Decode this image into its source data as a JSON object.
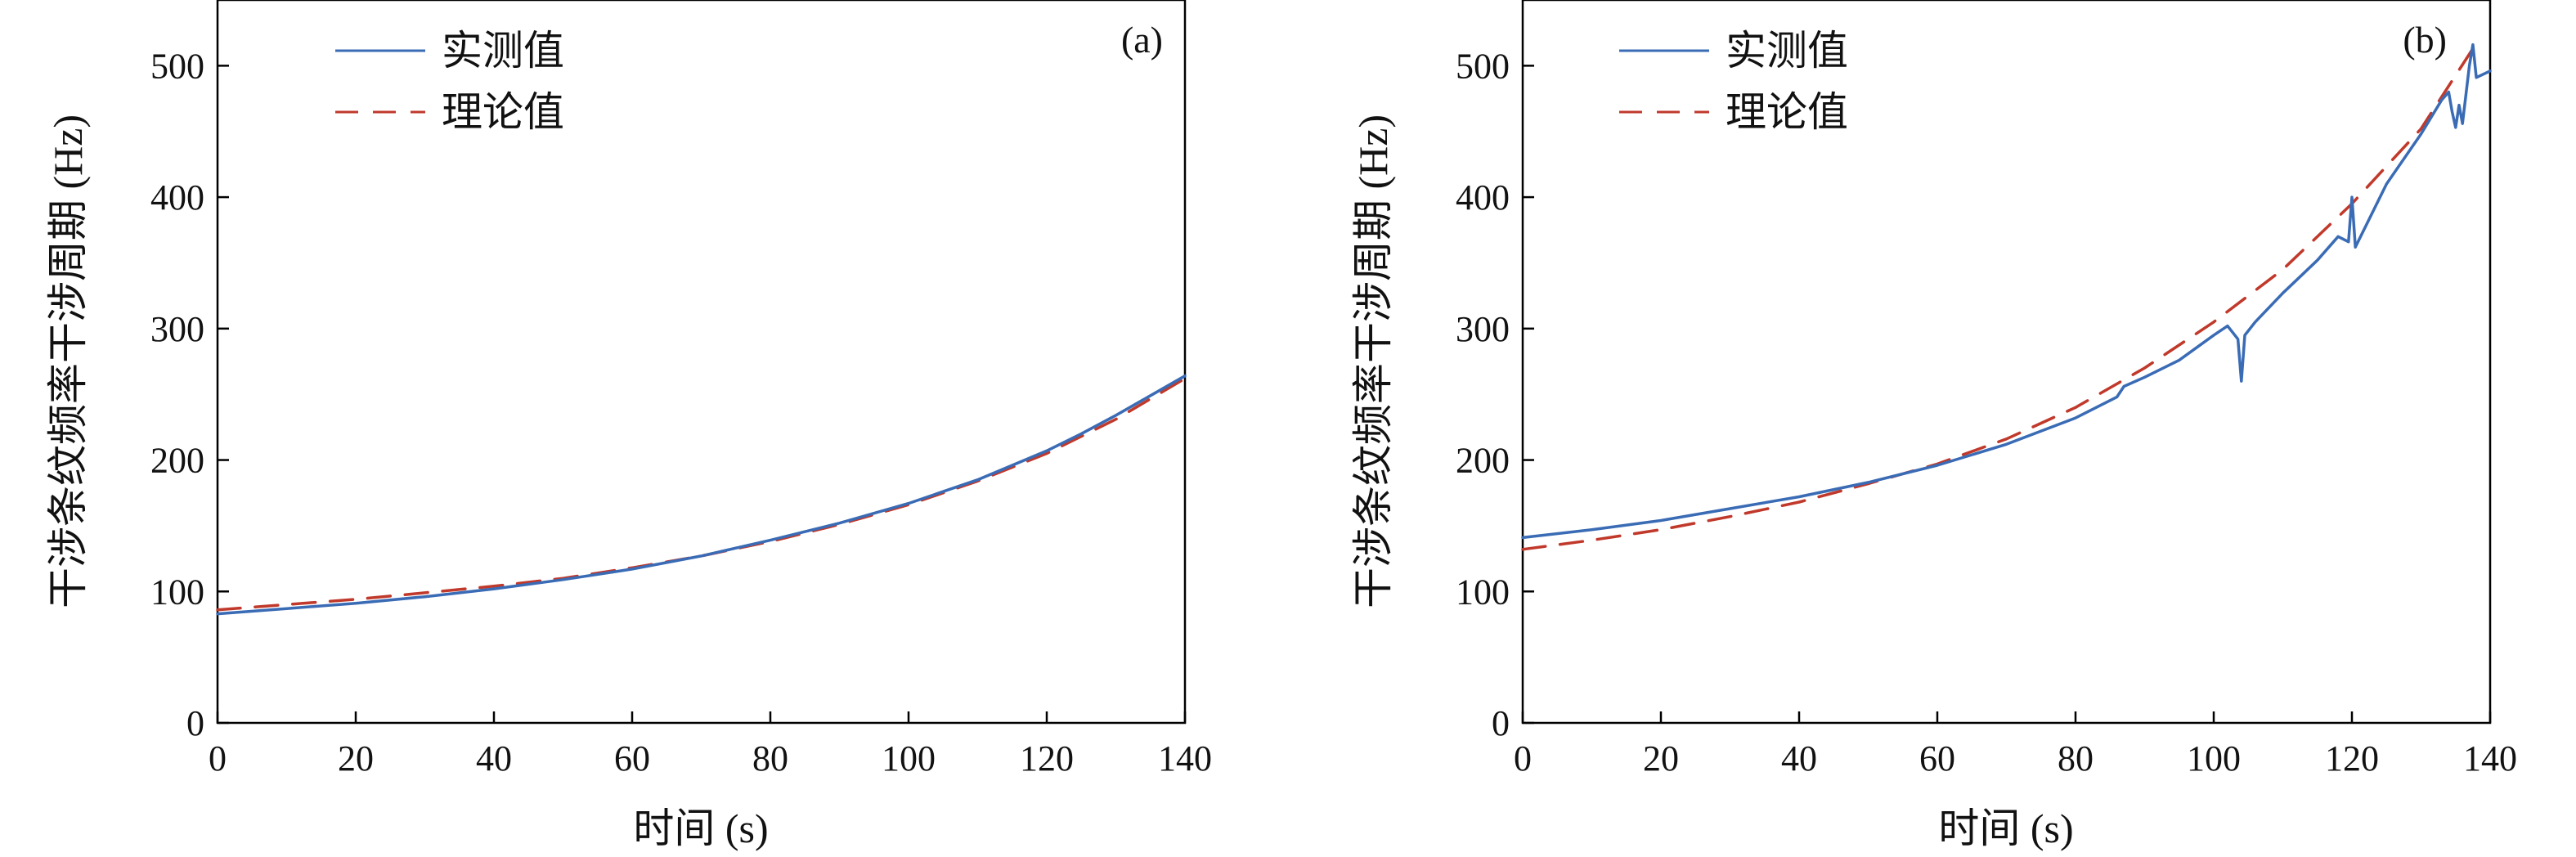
{
  "colors": {
    "measured": "#3a6bb5",
    "theory": "#c0392b",
    "axis": "#000000"
  },
  "chart_data": [
    {
      "type": "line",
      "panel_tag": "(a)",
      "xlabel": "时间 (s)",
      "ylabel": "干涉条纹频率干涉周期 (Hz)",
      "xlim": [
        0,
        140
      ],
      "ylim": [
        0,
        550
      ],
      "xticks": [
        0,
        20,
        40,
        60,
        80,
        100,
        120,
        140
      ],
      "yticks": [
        0,
        100,
        200,
        300,
        400,
        500
      ],
      "grid": false,
      "legend": "top-left",
      "series": [
        {
          "name": "实测值",
          "style": "solid",
          "color": "#3a6bb5",
          "x": [
            0,
            10,
            20,
            30,
            40,
            50,
            60,
            70,
            80,
            90,
            100,
            110,
            120,
            125,
            130,
            135,
            140
          ],
          "y": [
            83,
            87,
            91,
            96,
            102,
            109,
            117,
            127,
            139,
            152,
            167,
            185,
            207,
            220,
            234,
            249,
            264
          ]
        },
        {
          "name": "理论值",
          "style": "dashed",
          "color": "#c0392b",
          "x": [
            0,
            10,
            20,
            30,
            40,
            50,
            60,
            70,
            80,
            90,
            100,
            110,
            120,
            130,
            140
          ],
          "y": [
            86,
            90,
            94,
            99,
            104,
            110,
            118,
            127,
            138,
            151,
            166,
            184,
            205,
            231,
            262
          ]
        }
      ]
    },
    {
      "type": "line",
      "panel_tag": "(b)",
      "xlabel": "时间 (s)",
      "ylabel": "干涉条纹频率干涉周期 (Hz)",
      "xlim": [
        0,
        140
      ],
      "ylim": [
        0,
        550
      ],
      "xticks": [
        0,
        20,
        40,
        60,
        80,
        100,
        120,
        140
      ],
      "yticks": [
        0,
        100,
        200,
        300,
        400,
        500
      ],
      "grid": false,
      "legend": "top-left",
      "series": [
        {
          "name": "实测值",
          "style": "solid",
          "color": "#3a6bb5",
          "x": [
            0,
            10,
            20,
            30,
            40,
            50,
            60,
            70,
            80,
            86,
            87,
            90,
            95,
            100,
            102,
            103.5,
            104,
            104.5,
            106,
            110,
            115,
            118,
            119.5,
            120,
            120.5,
            122,
            125,
            130,
            133,
            134,
            134.5,
            135,
            135.5,
            136,
            137,
            137.5,
            138,
            140
          ],
          "y": [
            141,
            147,
            154,
            163,
            172,
            183,
            196,
            212,
            232,
            248,
            256,
            263,
            276,
            295,
            302,
            292,
            260,
            295,
            305,
            327,
            352,
            370,
            366,
            400,
            362,
            378,
            410,
            448,
            474,
            480,
            465,
            453,
            470,
            456,
            500,
            516,
            491,
            496
          ]
        },
        {
          "name": "理论值",
          "style": "dashed",
          "color": "#c0392b",
          "x": [
            0,
            10,
            20,
            30,
            40,
            50,
            60,
            70,
            80,
            90,
            100,
            110,
            120,
            130,
            138
          ],
          "y": [
            132,
            139,
            147,
            157,
            168,
            182,
            197,
            216,
            240,
            270,
            305,
            345,
            395,
            452,
            517
          ]
        }
      ]
    }
  ]
}
